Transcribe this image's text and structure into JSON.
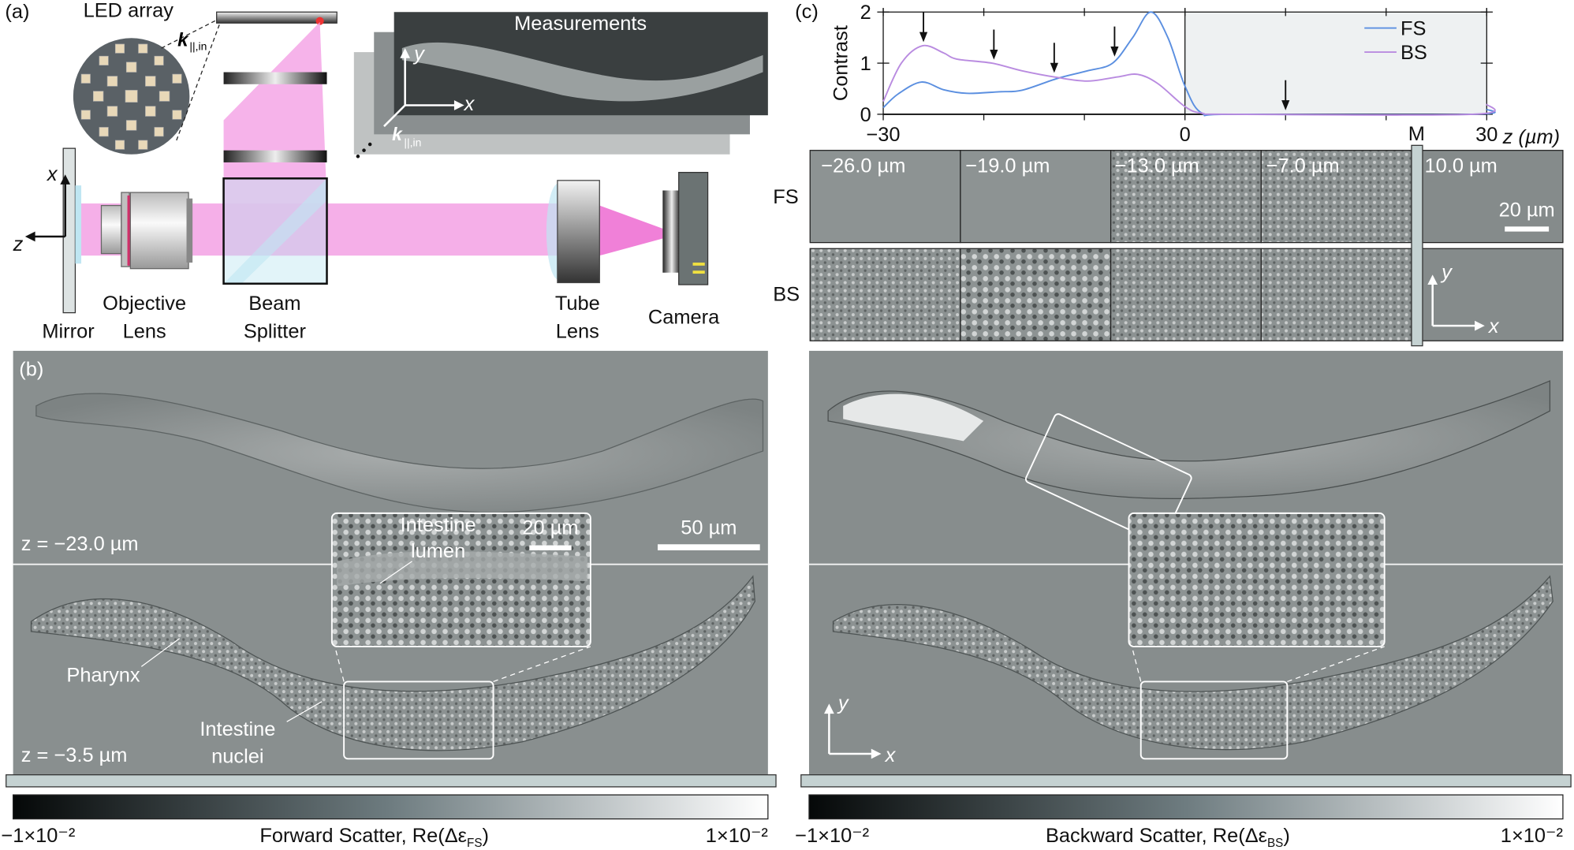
{
  "panel_a": {
    "label": "(a)",
    "led_array": "LED array",
    "k_label": "k",
    "k_sub": "||,in",
    "measurements": "Measurements",
    "axis_x": "x",
    "axis_y": "y",
    "axis_z": "z",
    "components": [
      {
        "line1": "Mirror",
        "line2": ""
      },
      {
        "line1": "Objective",
        "line2": "Lens"
      },
      {
        "line1": "Beam",
        "line2": "Splitter"
      },
      {
        "line1": "Tube",
        "line2": "Lens"
      },
      {
        "line1": "Camera",
        "line2": ""
      }
    ],
    "colors": {
      "beam": "#f4a6e6",
      "splitter": "#bfe6f2"
    }
  },
  "panel_b": {
    "label": "(b)",
    "z_top": "z = −23.0 µm",
    "z_bottom": "z = −3.5 µm",
    "scale_main": "50 µm",
    "inset_label_1": "Intestine",
    "inset_label_2": "lumen",
    "scale_inset": "20 µm",
    "pharynx": "Pharynx",
    "nuclei_1": "Intestine",
    "nuclei_2": "nuclei",
    "axis_x": "x",
    "axis_y": "y"
  },
  "colorbars": [
    {
      "min": "−1×10⁻²",
      "max": "1×10⁻²",
      "label": "Forward Scatter, Re(Δε",
      "sub": "FS",
      "close": ")"
    },
    {
      "min": "−1×10⁻²",
      "max": "1×10⁻²",
      "label": "Backward Scatter, Re(Δε",
      "sub": "BS",
      "close": ")"
    }
  ],
  "panel_c": {
    "label": "(c)",
    "rows": [
      "FS",
      "BS"
    ],
    "tiles": [
      "−26.0 µm",
      "−19.0 µm",
      "−13.0 µm",
      "−7.0 µm",
      "10.0 µm"
    ],
    "mirror_marker": "M",
    "scale": "20 µm",
    "axis_x": "x",
    "axis_y": "y"
  },
  "chart_data": {
    "type": "line",
    "xlabel": "z (µm)",
    "ylabel": "Contrast",
    "xlim": [
      -30,
      30
    ],
    "ylim": [
      0,
      2
    ],
    "xticks": [
      -30,
      0,
      30
    ],
    "yticks": [
      0,
      1,
      2
    ],
    "shaded_region": [
      0,
      30
    ],
    "legend_position": "top-right",
    "arrows_at_z": [
      -26,
      -19,
      -13,
      -7,
      10
    ],
    "series": [
      {
        "name": "FS",
        "color": "#5b8fe0",
        "x": [
          -30,
          -28.5,
          -26.2,
          -24,
          -21.7,
          -18.5,
          -16.2,
          -12.7,
          -9.7,
          -7.2,
          -5.2,
          -3.4,
          -1.7,
          0,
          1.7,
          5,
          28.6,
          30
        ],
        "y": [
          0.13,
          0.4,
          0.63,
          0.48,
          0.41,
          0.44,
          0.47,
          0.7,
          0.85,
          1.0,
          1.5,
          2.0,
          1.5,
          0.55,
          0.02,
          0,
          0,
          0.1
        ]
      },
      {
        "name": "BS",
        "color": "#b98be0",
        "x": [
          -30,
          -28.2,
          -26.1,
          -24,
          -22.7,
          -19.2,
          -16.2,
          -12.7,
          -9.7,
          -6.7,
          -4.7,
          -2.7,
          0,
          1.7,
          5,
          28.6,
          30
        ],
        "y": [
          0.25,
          1.0,
          1.34,
          1.2,
          1.08,
          1.0,
          0.85,
          0.72,
          0.65,
          0.73,
          0.78,
          0.6,
          0.15,
          0.02,
          0,
          0,
          0.2
        ]
      }
    ]
  }
}
